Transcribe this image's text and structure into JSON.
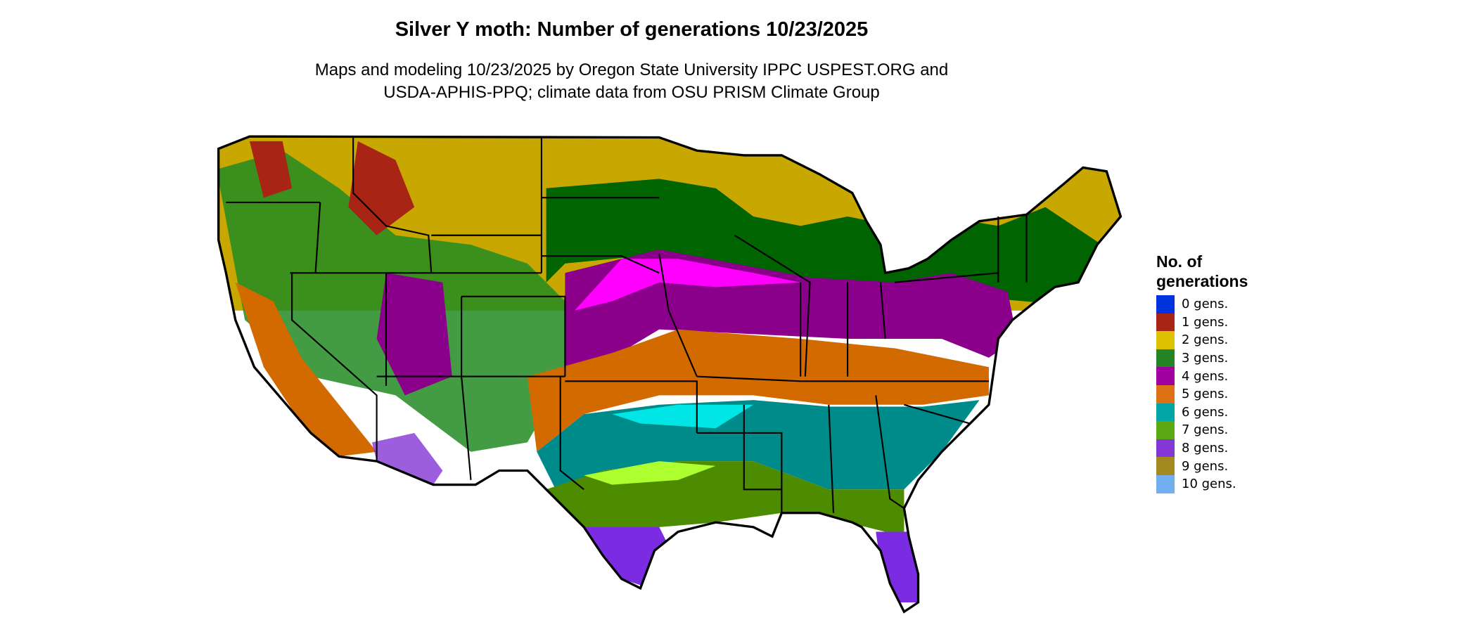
{
  "chart_data": {
    "type": "map",
    "title": "Silver Y moth: Number of generations 10/23/2025",
    "subtitle_lines": [
      "Maps and modeling 10/23/2025 by Oregon State University IPPC USPEST.ORG and",
      "USDA-APHIS-PPQ; climate data from OSU PRISM Climate Group"
    ],
    "region": "Contiguous United States",
    "legend": {
      "title_lines": [
        "No. of",
        "generations"
      ],
      "placement": "right",
      "items": [
        {
          "label": "0 gens.",
          "value": 0,
          "color": "#0033dd"
        },
        {
          "label": "1 gens.",
          "value": 1,
          "color": "#a82414"
        },
        {
          "label": "2 gens.",
          "value": 2,
          "color": "#dcc200"
        },
        {
          "label": "3 gens.",
          "value": 3,
          "color": "#238523"
        },
        {
          "label": "4 gens.",
          "value": 4,
          "color": "#a000a0"
        },
        {
          "label": "5 gens.",
          "value": 5,
          "color": "#dd7214"
        },
        {
          "label": "6 gens.",
          "value": 6,
          "color": "#00a6a6"
        },
        {
          "label": "7 gens.",
          "value": 7,
          "color": "#5aa812"
        },
        {
          "label": "8 gens.",
          "value": 8,
          "color": "#8536d6"
        },
        {
          "label": "9 gens.",
          "value": 9,
          "color": "#a38a1e"
        },
        {
          "label": "10 gens.",
          "value": 10,
          "color": "#72aef0"
        }
      ]
    }
  }
}
